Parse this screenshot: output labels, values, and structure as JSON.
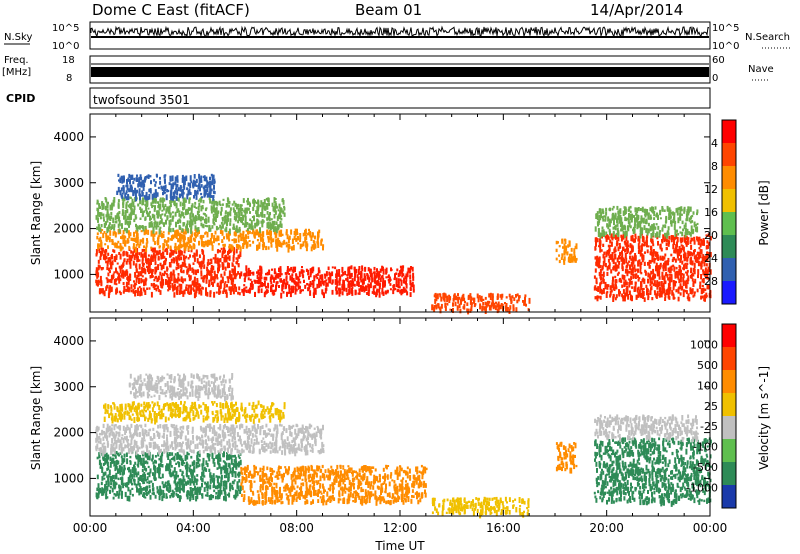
{
  "header": {
    "station": "Dome C East (fitACF)",
    "beam": "Beam 01",
    "date": "14/Apr/2014"
  },
  "nsky_panel": {
    "label": "N.Sky",
    "ytick_top": "10^5",
    "ytick_bottom": "10^0",
    "right_label": "N.Search",
    "right_tick_top": "10^5",
    "right_tick_bottom": "10^0"
  },
  "freq_panel": {
    "label_line1": "Freq.",
    "label_line2": "[MHz]",
    "ytick_top": "18",
    "ytick_bottom": "8",
    "right_label": "Nave",
    "right_tick_top": "60",
    "right_tick_bottom": "0"
  },
  "cpid_panel": {
    "label": "CPID",
    "program": "twofsound 3501"
  },
  "chart_data": [
    {
      "type": "heatmap",
      "name": "power",
      "ylabel": "Slant Range [km]",
      "xlabel": "",
      "xlim_hours": [
        0,
        24
      ],
      "ylim_km": [
        180,
        4500
      ],
      "yticks": [
        "1000",
        "2000",
        "3000",
        "4000"
      ],
      "colorbar": {
        "label": "Power [dB]",
        "tick_labels": [
          "4",
          "8",
          "12",
          "16",
          "20",
          "24",
          "28"
        ],
        "colors": [
          "#1a1aff",
          "#3060b0",
          "#2e8b57",
          "#5fbf4f",
          "#f0c000",
          "#ff8c00",
          "#ff4500",
          "#ff0000"
        ]
      },
      "regions": [
        {
          "t": [
            0.2,
            5.8
          ],
          "r": [
            600,
            1600
          ],
          "color": "#ff2a00"
        },
        {
          "t": [
            5.8,
            12.5
          ],
          "r": [
            600,
            1200
          ],
          "color": "#ff1a00"
        },
        {
          "t": [
            0.2,
            9.0
          ],
          "r": [
            1600,
            2000
          ],
          "color": "#ff8c00"
        },
        {
          "t": [
            0.2,
            7.5
          ],
          "r": [
            2000,
            2700
          ],
          "color": "#6fae4f"
        },
        {
          "t": [
            1.0,
            4.8
          ],
          "r": [
            2700,
            3200
          ],
          "color": "#3060b0"
        },
        {
          "t": [
            13.2,
            17.0
          ],
          "r": [
            250,
            600
          ],
          "color": "#ff4500"
        },
        {
          "t": [
            18.0,
            18.8
          ],
          "r": [
            1300,
            1800
          ],
          "color": "#ff8c00"
        },
        {
          "t": [
            19.5,
            24.0
          ],
          "r": [
            500,
            1900
          ],
          "color": "#ff2a00"
        },
        {
          "t": [
            19.5,
            23.5
          ],
          "r": [
            1900,
            2500
          ],
          "color": "#6fae4f"
        }
      ]
    },
    {
      "type": "heatmap",
      "name": "velocity",
      "ylabel": "Slant Range [km]",
      "xlabel": "Time UT",
      "xlim_hours": [
        0,
        24
      ],
      "ylim_km": [
        180,
        4500
      ],
      "xticks": [
        "00:00",
        "04:00",
        "08:00",
        "12:00",
        "16:00",
        "20:00",
        "00:00"
      ],
      "yticks": [
        "1000",
        "2000",
        "3000",
        "4000"
      ],
      "colorbar": {
        "label": "Velocity [m s^-1]",
        "tick_labels": [
          "1000",
          "500",
          "100",
          "25",
          "-25",
          "-100",
          "-500",
          "-1000"
        ],
        "colors": [
          "#1a3aaa",
          "#2e8b57",
          "#5fbf4f",
          "#c0c0c0",
          "#f0c000",
          "#ff8c00",
          "#ff4500",
          "#ff0000"
        ]
      },
      "regions": [
        {
          "t": [
            0.2,
            5.8
          ],
          "r": [
            600,
            1600
          ],
          "color": "#2e8b57"
        },
        {
          "t": [
            5.8,
            13.0
          ],
          "r": [
            500,
            1300
          ],
          "color": "#ff8c00"
        },
        {
          "t": [
            0.2,
            9.0
          ],
          "r": [
            1600,
            2200
          ],
          "color": "#c0c0c0"
        },
        {
          "t": [
            0.5,
            7.5
          ],
          "r": [
            2300,
            2700
          ],
          "color": "#f0c000"
        },
        {
          "t": [
            1.5,
            5.5
          ],
          "r": [
            2800,
            3300
          ],
          "color": "#c0c0c0"
        },
        {
          "t": [
            13.2,
            17.0
          ],
          "r": [
            250,
            600
          ],
          "color": "#f0c000"
        },
        {
          "t": [
            18.0,
            18.8
          ],
          "r": [
            1200,
            1800
          ],
          "color": "#ff8c00"
        },
        {
          "t": [
            19.5,
            24.0
          ],
          "r": [
            500,
            1900
          ],
          "color": "#2e8b57"
        },
        {
          "t": [
            19.5,
            23.5
          ],
          "r": [
            1900,
            2400
          ],
          "color": "#c0c0c0"
        }
      ]
    }
  ]
}
